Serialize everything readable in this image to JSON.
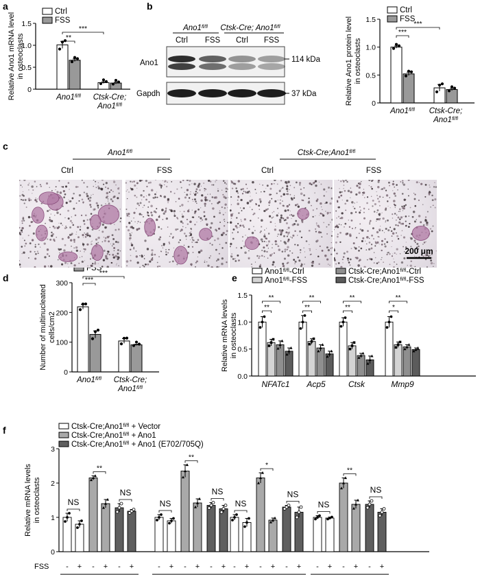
{
  "panel_labels": [
    "a",
    "b",
    "c",
    "d",
    "e",
    "f"
  ],
  "colors": {
    "ctrl": "#ffffff",
    "fss": "#999999",
    "e_ctrl": "#ffffff",
    "e_fss": "#d4d4d4",
    "e_cre_ctrl": "#8f8f8f",
    "e_cre_fss": "#5c5c5c",
    "f_vector": "#ffffff",
    "f_ano1": "#a9a9a9",
    "f_mut": "#5f5f5f",
    "stain": "#b07aa4"
  },
  "blot": {
    "genotype_1": "Ano1fl/fl",
    "genotype_2": "Ctsk-Cre; Ano1fl/fl",
    "lanes": [
      "Ctrl",
      "FSS",
      "Ctrl",
      "FSS"
    ],
    "rows": [
      {
        "protein": "Ano1",
        "size": "114 kDa"
      },
      {
        "protein": "Gapdh",
        "size": "37 kDa"
      }
    ]
  },
  "micrographs": {
    "group_1": "Ano1fl/fl",
    "group_2": "Ctsk-Cre;Ano1fl/fl",
    "labels": [
      "Ctrl",
      "FSS",
      "Ctrl",
      "FSS"
    ],
    "scale_bar": "200 μm"
  },
  "chart_data": [
    {
      "id": "a",
      "type": "bar",
      "ylabel": "Relative Ano1 mRNA level in osteoclasts",
      "ylim": [
        0,
        1.5
      ],
      "yticks": [
        "0",
        "0.5",
        "1.0",
        "1.5"
      ],
      "categories": [
        "Ano1fl/fl",
        "Ctsk-Cre; Ano1fl/fl"
      ],
      "legend": [
        "Ctrl",
        "FSS"
      ],
      "series": [
        {
          "name": "Ctrl",
          "values": [
            1.01,
            0.15
          ],
          "err": [
            0.08,
            0.02
          ]
        },
        {
          "name": "FSS",
          "values": [
            0.66,
            0.14
          ],
          "err": [
            0.03,
            0.02
          ]
        }
      ],
      "significance": [
        "**",
        "***"
      ]
    },
    {
      "id": "b",
      "type": "bar",
      "ylabel": "Relative Ano1 protein level in osteoclasts",
      "ylim": [
        0,
        1.5
      ],
      "yticks": [
        "0",
        "0.5",
        "1.0",
        "1.5"
      ],
      "categories": [
        "Ano1fl/fl",
        "Ctsk-Cre; Ano1fl/fl"
      ],
      "legend": [
        "Ctrl",
        "FSS"
      ],
      "series": [
        {
          "name": "Ctrl",
          "values": [
            1.0,
            0.27
          ],
          "err": [
            0.02,
            0.06
          ]
        },
        {
          "name": "FSS",
          "values": [
            0.52,
            0.24
          ],
          "err": [
            0.03,
            0.02
          ]
        }
      ],
      "significance": [
        "***",
        "***"
      ]
    },
    {
      "id": "d",
      "type": "bar",
      "ylabel": "Number of multinucleated cells/cm2",
      "ylim": [
        0,
        300
      ],
      "yticks": [
        "0",
        "100",
        "200",
        "300"
      ],
      "categories": [
        "Ano1fl/fl",
        "Ctsk-Cre; Ano1fl/fl"
      ],
      "legend": [
        "Ctrl",
        "FSS"
      ],
      "series": [
        {
          "name": "Ctrl",
          "values": [
            219,
            104
          ],
          "err": [
            8,
            8
          ]
        },
        {
          "name": "FSS",
          "values": [
            126,
            91
          ],
          "err": [
            12,
            2
          ]
        }
      ],
      "significance": [
        "***",
        "***"
      ]
    },
    {
      "id": "e",
      "type": "bar",
      "ylabel": "Relative mRNA levels in osteoclasts",
      "ylim": [
        0,
        1.5
      ],
      "yticks": [
        "0.0",
        "0.5",
        "1.0",
        "1.5"
      ],
      "categories": [
        "NFATc1",
        "Acp5",
        "Ctsk",
        "Mmp9"
      ],
      "legend": [
        "Ano1fl/fl-Ctrl",
        "Ano1fl/fl-FSS",
        "Ctsk-Cre;Ano1fl/fl-Ctrl",
        "Ctsk-Cre;Ano1fl/fl-FSS"
      ],
      "series": [
        {
          "name": "Ano1fl/fl-Ctrl",
          "values": [
            1.0,
            1.0,
            1.0,
            1.0
          ],
          "err": [
            0.1,
            0.12,
            0.08,
            0.1
          ]
        },
        {
          "name": "Ano1fl/fl-FSS",
          "values": [
            0.62,
            0.64,
            0.56,
            0.58
          ],
          "err": [
            0.06,
            0.05,
            0.06,
            0.05
          ]
        },
        {
          "name": "Ctsk-Cre;Ano1fl/fl-Ctrl",
          "values": [
            0.58,
            0.52,
            0.38,
            0.54
          ],
          "err": [
            0.07,
            0.06,
            0.04,
            0.04
          ]
        },
        {
          "name": "Ctsk-Cre;Ano1fl/fl-FSS",
          "values": [
            0.46,
            0.41,
            0.3,
            0.49
          ],
          "err": [
            0.06,
            0.05,
            0.07,
            0.03
          ]
        }
      ],
      "significance": [
        "**",
        "**",
        "**",
        "**",
        "**",
        "**",
        "**",
        "*"
      ]
    },
    {
      "id": "f",
      "type": "bar",
      "ylabel": "Relative mRNA levels in osteoclasts",
      "ylim": [
        0,
        3
      ],
      "yticks": [
        "0",
        "1",
        "2",
        "3"
      ],
      "categories": [
        "NFATc1",
        "Acp5",
        "Ctsk",
        "Mmp9"
      ],
      "legend": [
        "Ctsk-Cre;Ano1fl/fl + Vector",
        "Ctsk-Cre;Ano1fl/fl + Ano1",
        "Ctsk-Cre;Ano1fl/fl + Ano1 (E702/705Q)"
      ],
      "fss_row_label": "FSS",
      "fss_signs": [
        "-",
        "+",
        "-",
        "+",
        "-",
        "+"
      ],
      "series": [
        {
          "name": "Ctsk-Cre;Ano1fl/fl + Vector",
          "values": [
            [
              1.0,
              0.8
            ],
            [
              1.0,
              0.9
            ],
            [
              1.0,
              0.85
            ],
            [
              1.0,
              0.98
            ]
          ],
          "err": [
            [
              0.12,
              0.1
            ],
            [
              0.08,
              0.07
            ],
            [
              0.08,
              0.12
            ],
            [
              0.05,
              0.03
            ]
          ]
        },
        {
          "name": "Ctsk-Cre;Ano1fl/fl + Ano1",
          "values": [
            [
              2.15,
              1.4
            ],
            [
              2.35,
              1.42
            ],
            [
              2.15,
              0.92
            ],
            [
              2.0,
              1.38
            ]
          ],
          "err": [
            [
              0.06,
              0.12
            ],
            [
              0.18,
              0.12
            ],
            [
              0.15,
              0.06
            ],
            [
              0.15,
              0.12
            ]
          ]
        },
        {
          "name": "Ctsk-Cre;Ano1fl/fl + Ano1 (E702/705Q)",
          "values": [
            [
              1.28,
              1.18
            ],
            [
              1.35,
              1.25
            ],
            [
              1.3,
              1.15
            ],
            [
              1.38,
              1.15
            ]
          ],
          "err": [
            [
              0.12,
              0.05
            ],
            [
              0.08,
              0.1
            ],
            [
              0.05,
              0.15
            ],
            [
              0.1,
              0.1
            ]
          ]
        }
      ],
      "significance": [
        "NS",
        "**",
        "NS",
        "NS",
        "**",
        "NS",
        "NS",
        "*",
        "NS",
        "NS",
        "**",
        "NS"
      ]
    }
  ]
}
